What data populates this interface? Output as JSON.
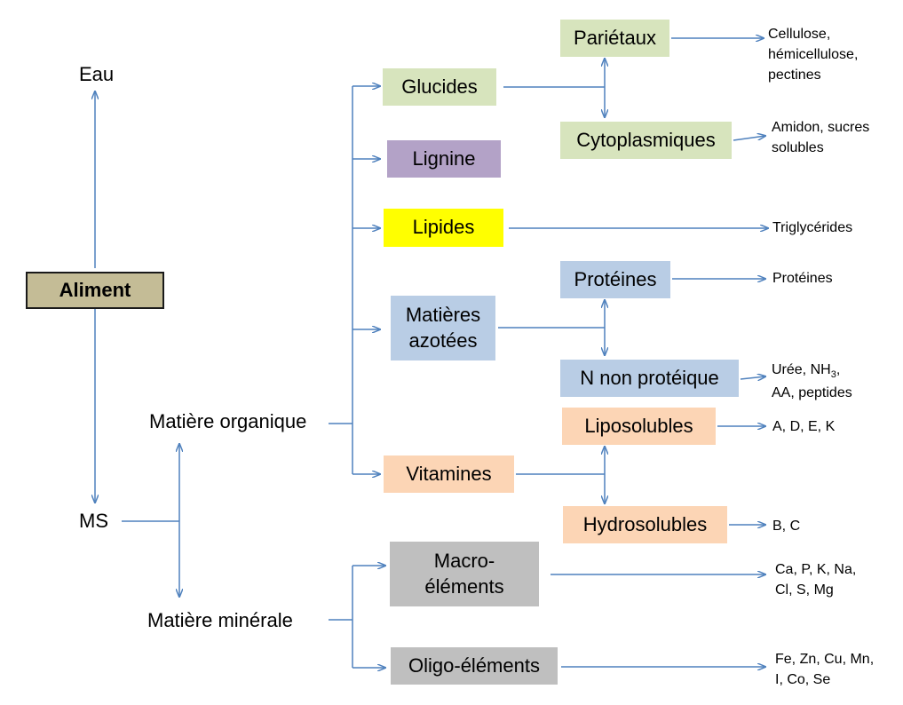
{
  "colors": {
    "arrow": "#4F81BD",
    "aliment": "#C4BC96",
    "green": "#D7E4BD",
    "purple": "#B3A2C7",
    "yellow": "#FFFF00",
    "blue": "#B9CDE5",
    "peach": "#FCD5B5",
    "grey": "#BFBFBF"
  },
  "root": {
    "label": "Aliment"
  },
  "top": {
    "eau": "Eau",
    "ms": "MS"
  },
  "branches": {
    "organique": "Matière organique",
    "minerale": "Matière minérale"
  },
  "organique": {
    "glucides": "Glucides",
    "lignine": "Lignine",
    "lipides": "Lipides",
    "azotees_1": "Matières",
    "azotees_2": "azotées",
    "vitamines": "Vitamines"
  },
  "minerale": {
    "macro_1": "Macro-",
    "macro_2": "éléments",
    "oligo": "Oligo-éléments"
  },
  "sub": {
    "parietaux": "Pariétaux",
    "cyto": "Cytoplasmiques",
    "proteines": "Protéines",
    "npn": "N non protéique",
    "lipo": "Liposolubles",
    "hydro": "Hydrosolubles"
  },
  "leaves": {
    "parietaux_1": "Cellulose,",
    "parietaux_2": "hémicellulose,",
    "parietaux_3": "pectines",
    "cyto_1": "Amidon, sucres",
    "cyto_2": "solubles",
    "lipides": "Triglycérides",
    "proteines": "Protéines",
    "npn_1": "Urée, NH",
    "npn_sub": "3",
    "npn_1b": ",",
    "npn_2": "AA, peptides",
    "lipo": "A, D, E, K",
    "hydro": "B, C",
    "macro_1": "Ca, P, K, Na,",
    "macro_2": "Cl, S, Mg",
    "oligo_1": "Fe, Zn, Cu, Mn,",
    "oligo_2": "I, Co, Se"
  }
}
